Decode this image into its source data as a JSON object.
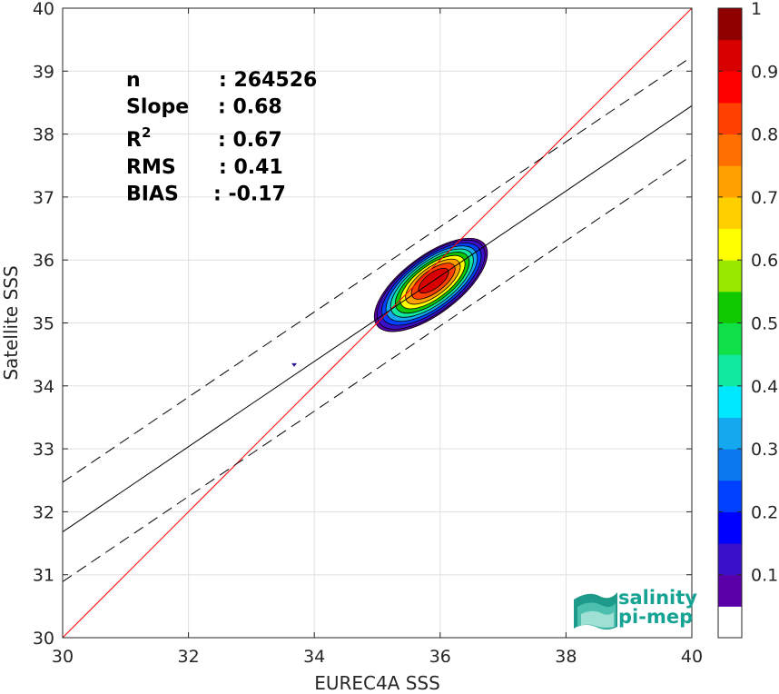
{
  "chart_data": {
    "type": "heatmap",
    "xlabel": "EUREC4A SSS",
    "ylabel": "Satellite SSS",
    "xlim": [
      30,
      40
    ],
    "ylim": [
      30,
      40
    ],
    "xticks": [
      30,
      32,
      34,
      36,
      38,
      40
    ],
    "yticks": [
      30,
      31,
      32,
      33,
      34,
      35,
      36,
      37,
      38,
      39,
      40
    ],
    "grid": true,
    "stats": [
      {
        "label": "n",
        "value": ": 264526"
      },
      {
        "label": "Slope",
        "value": ": 0.68"
      },
      {
        "label": "R",
        "sup": "2",
        "value": ": 0.67"
      },
      {
        "label": "RMS",
        "value": ": 0.41"
      },
      {
        "label": "BIAS",
        "value": ": -0.17"
      }
    ],
    "lines": {
      "one_to_one": {
        "color": "#ff0000",
        "points": [
          [
            30,
            30
          ],
          [
            40,
            40
          ]
        ]
      },
      "regression": {
        "color": "#000000",
        "points": [
          [
            30,
            31.68
          ],
          [
            40,
            38.45
          ]
        ]
      },
      "upper_bound": {
        "color": "#000000",
        "dash": true,
        "points": [
          [
            30,
            32.47
          ],
          [
            40,
            39.23
          ]
        ]
      },
      "lower_bound": {
        "color": "#000000",
        "dash": true,
        "points": [
          [
            30,
            30.89
          ],
          [
            40,
            37.66
          ]
        ]
      }
    },
    "density": {
      "center": [
        35.9,
        35.68
      ],
      "angle_deg": 37,
      "outer_semi_axes": [
        1.1,
        0.47
      ],
      "outer_center": [
        35.85,
        35.6
      ],
      "levels": [
        0.05,
        0.1,
        0.2,
        0.3,
        0.4,
        0.5,
        0.6,
        0.7,
        0.8,
        0.9
      ],
      "outlier": [
        33.68,
        34.33
      ]
    },
    "colorbar": {
      "ticks": [
        "0.1",
        "0.2",
        "0.3",
        "0.4",
        "0.5",
        "0.6",
        "0.7",
        "0.8",
        "0.9",
        "1"
      ],
      "tick_values": [
        0.1,
        0.2,
        0.3,
        0.4,
        0.5,
        0.6,
        0.7,
        0.8,
        0.9,
        1.0
      ],
      "colors": [
        "#ffffff",
        "#5a00a8",
        "#3a10c8",
        "#0000ff",
        "#0040ff",
        "#0a78ee",
        "#14a8ee",
        "#00e8ff",
        "#10e8a0",
        "#10e048",
        "#10c800",
        "#98e800",
        "#ffff00",
        "#ffd000",
        "#ffa000",
        "#ff7000",
        "#ff4000",
        "#ff0000",
        "#d80000",
        "#900000"
      ],
      "range": [
        0,
        1
      ]
    }
  },
  "logo": {
    "line1": "salinity",
    "line2": "pi-mep"
  }
}
